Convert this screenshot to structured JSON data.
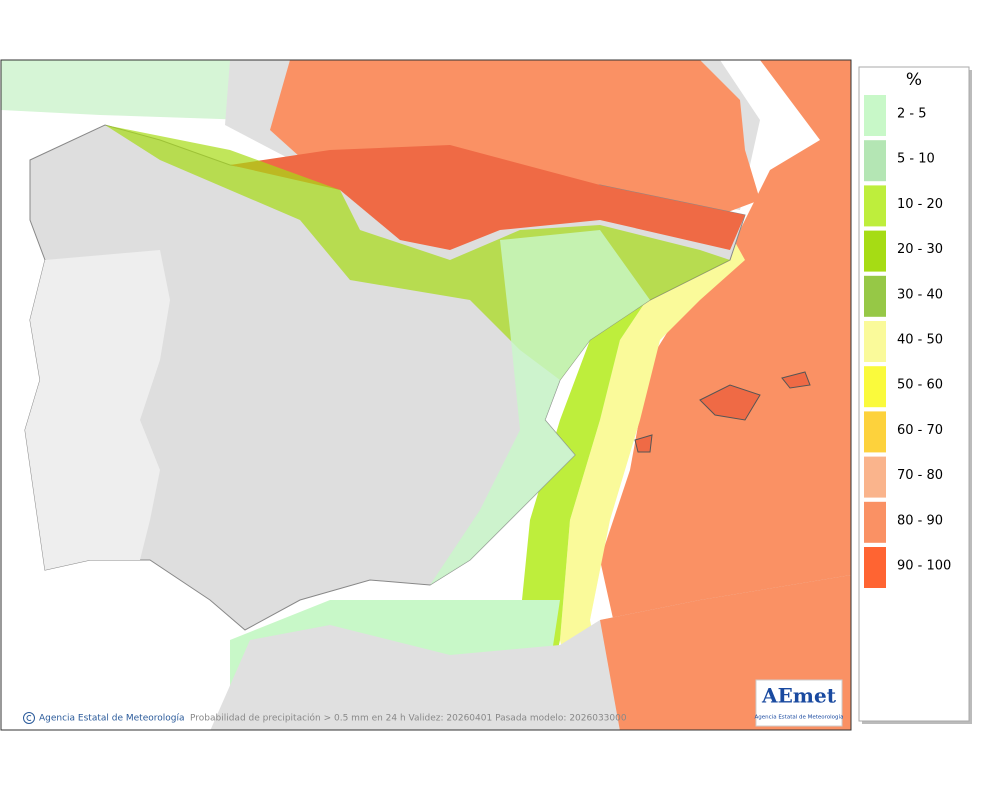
{
  "legend": {
    "unit": "%",
    "items": [
      {
        "label": "2 - 5",
        "color": "#c8f8c8"
      },
      {
        "label": "5 - 10",
        "color": "#b4e6b4"
      },
      {
        "label": "10 - 20",
        "color": "#beee3c"
      },
      {
        "label": "20 - 30",
        "color": "#a6dc14"
      },
      {
        "label": "30 - 40",
        "color": "#96c846"
      },
      {
        "label": "40 - 50",
        "color": "#fafa9a"
      },
      {
        "label": "50 - 60",
        "color": "#fafa3c"
      },
      {
        "label": "60 - 70",
        "color": "#fdd23c"
      },
      {
        "label": "70 - 80",
        "color": "#fab48c"
      },
      {
        "label": "80 - 90",
        "color": "#fa9164"
      },
      {
        "label": "90 - 100",
        "color": "#ff6432"
      }
    ]
  },
  "footer": {
    "credit": "Agencia Estatal de Meteorología",
    "caption": "Probabilidad de precipitación > 0.5 mm en 24 h Validez: 20260401 Pasada modelo: 2026033000"
  },
  "logo": {
    "name": "AEmet",
    "subtitle": "Agencia Estatal de Meteorología"
  }
}
